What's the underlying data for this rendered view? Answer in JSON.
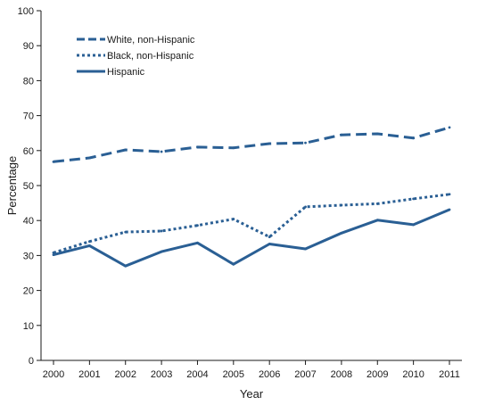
{
  "chart_data": {
    "type": "line",
    "xlabel": "Year",
    "ylabel": "Percentage",
    "x": [
      "2000",
      "2001",
      "2002",
      "2003",
      "2004",
      "2005",
      "2006",
      "2007",
      "2008",
      "2009",
      "2010",
      "2011"
    ],
    "ylim": [
      0,
      100
    ],
    "yticks": [
      0,
      10,
      20,
      30,
      40,
      50,
      60,
      70,
      80,
      90,
      100
    ],
    "grid": false,
    "legend_position": "top-left",
    "line_color": "#2a5f94",
    "series": [
      {
        "name": "White, non-Hispanic",
        "style": "dashed",
        "values": [
          56.8,
          57.9,
          60.2,
          59.7,
          61.0,
          60.8,
          62.0,
          62.2,
          64.5,
          64.8,
          63.6,
          66.6
        ]
      },
      {
        "name": "Black, non-Hispanic",
        "style": "dotted",
        "values": [
          30.8,
          34.0,
          36.7,
          37.0,
          38.6,
          40.4,
          35.3,
          43.9,
          44.4,
          44.8,
          46.2,
          47.5
        ]
      },
      {
        "name": "Hispanic",
        "style": "solid",
        "values": [
          30.2,
          32.8,
          27.0,
          31.1,
          33.6,
          27.5,
          33.3,
          31.9,
          36.4,
          40.1,
          38.8,
          43.1
        ]
      }
    ]
  }
}
